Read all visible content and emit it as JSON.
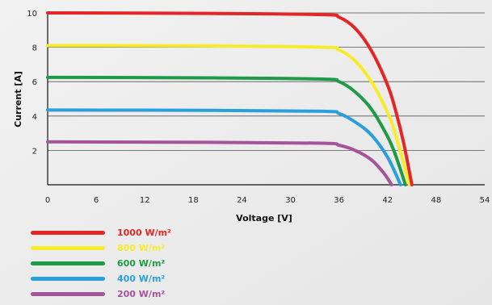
{
  "chart_data": {
    "type": "line",
    "title": "",
    "xlabel": "Voltage [V]",
    "ylabel": "Current [A]",
    "xlim": [
      0,
      54
    ],
    "ylim": [
      0,
      10
    ],
    "x_ticks": [
      "0",
      "6",
      "12",
      "18",
      "24",
      "30",
      "36",
      "42",
      "48",
      "54"
    ],
    "y_ticks": [
      "2",
      "4",
      "6",
      "8",
      "10"
    ],
    "grid": "horizontal",
    "legend_position": "bottom-left",
    "series": [
      {
        "name": "1000 W/m²",
        "color": "#e32626",
        "points": [
          [
            0,
            10.0
          ],
          [
            20,
            9.97
          ],
          [
            34,
            9.9
          ],
          [
            36,
            9.75
          ],
          [
            38,
            9.1
          ],
          [
            40,
            7.8
          ],
          [
            42,
            5.8
          ],
          [
            43,
            4.3
          ],
          [
            44,
            2.4
          ],
          [
            45,
            0
          ]
        ]
      },
      {
        "name": "800 W/m²",
        "color": "#f7ec2b",
        "points": [
          [
            0,
            8.1
          ],
          [
            20,
            8.08
          ],
          [
            34,
            8.0
          ],
          [
            36,
            7.85
          ],
          [
            38,
            7.2
          ],
          [
            40,
            6.0
          ],
          [
            42,
            4.2
          ],
          [
            43,
            2.9
          ],
          [
            44.7,
            0
          ]
        ]
      },
      {
        "name": "600 W/m²",
        "color": "#1f9a46",
        "points": [
          [
            0,
            6.25
          ],
          [
            20,
            6.22
          ],
          [
            34,
            6.15
          ],
          [
            36,
            6.0
          ],
          [
            38,
            5.4
          ],
          [
            40,
            4.4
          ],
          [
            42,
            2.8
          ],
          [
            43,
            1.7
          ],
          [
            44.2,
            0
          ]
        ]
      },
      {
        "name": "400 W/m²",
        "color": "#2a9fdb",
        "points": [
          [
            0,
            4.35
          ],
          [
            20,
            4.33
          ],
          [
            34,
            4.28
          ],
          [
            36,
            4.15
          ],
          [
            38,
            3.65
          ],
          [
            40,
            2.9
          ],
          [
            42,
            1.6
          ],
          [
            43.6,
            0
          ]
        ]
      },
      {
        "name": "200 W/m²",
        "color": "#a5539b",
        "points": [
          [
            0,
            2.5
          ],
          [
            20,
            2.47
          ],
          [
            34,
            2.42
          ],
          [
            36,
            2.3
          ],
          [
            38,
            2.0
          ],
          [
            40,
            1.45
          ],
          [
            41.5,
            0.7
          ],
          [
            42.5,
            0
          ]
        ]
      }
    ]
  }
}
